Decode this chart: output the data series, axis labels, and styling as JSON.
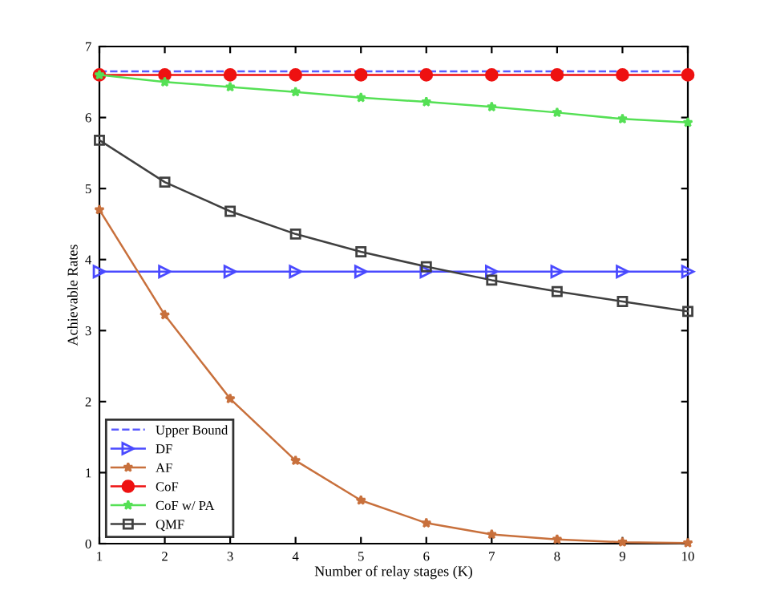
{
  "chart_data": {
    "type": "line",
    "xlabel": "Number of relay stages (K)",
    "ylabel": "Achievable Rates",
    "x": [
      1,
      2,
      3,
      4,
      5,
      6,
      7,
      8,
      9,
      10
    ],
    "xlim": [
      1,
      10
    ],
    "xticks": [
      1,
      2,
      3,
      4,
      5,
      6,
      7,
      8,
      9,
      10
    ],
    "ylim": [
      0,
      7
    ],
    "yticks": [
      0,
      1,
      2,
      3,
      4,
      5,
      6,
      7
    ],
    "grid": false,
    "legend": "bottom left",
    "series": [
      {
        "name": "Upper Bound",
        "color": "#5a5aff",
        "marker": "none",
        "line_style": "dashed",
        "values": [
          6.65,
          6.65,
          6.65,
          6.65,
          6.65,
          6.65,
          6.65,
          6.65,
          6.65,
          6.65
        ]
      },
      {
        "name": "DF",
        "color": "#4a4aff",
        "marker": "triangle",
        "line_style": "solid",
        "values": [
          3.83,
          3.83,
          3.83,
          3.83,
          3.83,
          3.83,
          3.83,
          3.83,
          3.83,
          3.83
        ]
      },
      {
        "name": "AF",
        "color": "#c8703c",
        "marker": "star",
        "line_style": "solid",
        "values": [
          4.7,
          3.22,
          2.04,
          1.17,
          0.61,
          0.29,
          0.13,
          0.06,
          0.02,
          0.01
        ]
      },
      {
        "name": "CoF",
        "color": "#ee1111",
        "marker": "circle",
        "line_style": "solid",
        "values": [
          6.6,
          6.6,
          6.6,
          6.6,
          6.6,
          6.6,
          6.6,
          6.6,
          6.6,
          6.6
        ]
      },
      {
        "name": "CoF w/ PA",
        "color": "#55e055",
        "marker": "star",
        "line_style": "solid",
        "values": [
          6.6,
          6.5,
          6.43,
          6.36,
          6.28,
          6.22,
          6.15,
          6.07,
          5.98,
          5.93
        ]
      },
      {
        "name": "QMF",
        "color": "#404040",
        "marker": "square",
        "line_style": "solid",
        "values": [
          5.68,
          5.09,
          4.68,
          4.36,
          4.11,
          3.9,
          3.71,
          3.55,
          3.41,
          3.27
        ]
      }
    ]
  }
}
